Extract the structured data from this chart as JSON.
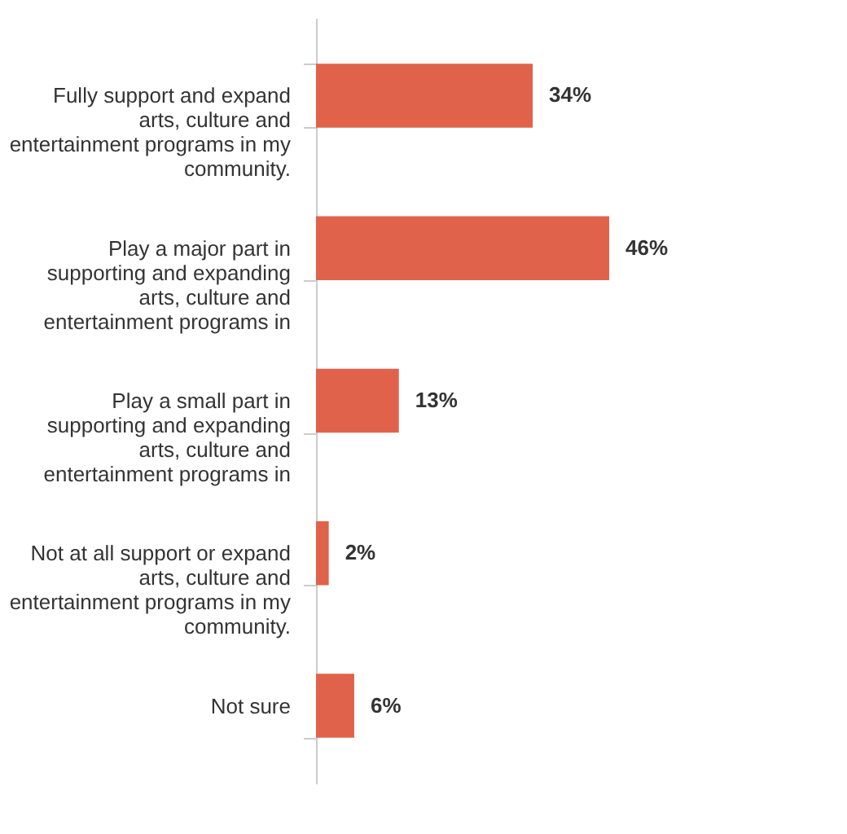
{
  "chart_data": {
    "type": "bar",
    "orientation": "horizontal",
    "categories": [
      "Fully support and expand arts, culture and entertainment programs in my community.",
      "Play a major part in supporting and expanding arts, culture and entertainment programs in",
      "Play a small part in supporting and expanding arts, culture and entertainment programs in",
      "Not at all support or expand arts, culture and entertainment programs in my community.",
      "Not sure"
    ],
    "values": [
      34,
      46,
      13,
      2,
      6
    ],
    "value_labels": [
      "34%",
      "46%",
      "13%",
      "2%",
      "6%"
    ],
    "color": "#e0624a",
    "grid": false,
    "tick_labels": "y"
  }
}
